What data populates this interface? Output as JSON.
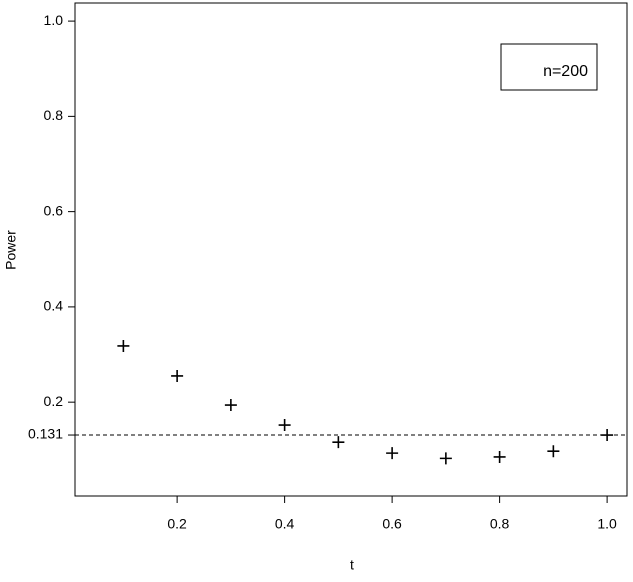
{
  "chart_data": {
    "type": "scatter",
    "marker": "+",
    "color": "#000000",
    "x": [
      0.1,
      0.2,
      0.3,
      0.4,
      0.5,
      0.6,
      0.7,
      0.8,
      0.9,
      1.0
    ],
    "y": [
      0.318,
      0.255,
      0.194,
      0.152,
      0.116,
      0.093,
      0.082,
      0.085,
      0.097,
      0.131
    ],
    "xlabel": "t",
    "ylabel": "Power",
    "xlim": [
      0.01,
      1.037
    ],
    "ylim": [
      0.003,
      1.038
    ],
    "xticks": [
      0.2,
      0.4,
      0.6,
      0.8,
      {
        "value": 1,
        "label": "1.0"
      }
    ],
    "yticks": [
      0.131,
      0.2,
      0.4,
      0.6,
      0.8,
      {
        "value": 1,
        "label": "1.0"
      }
    ],
    "hline": 0.131,
    "legend": {
      "text": "n=200",
      "position": "top-right"
    },
    "grid": false
  }
}
